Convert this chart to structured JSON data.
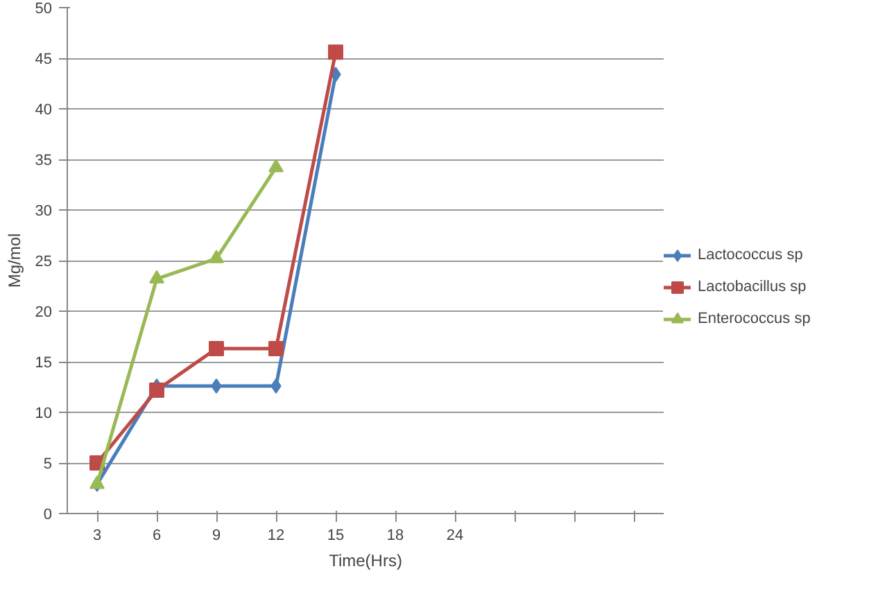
{
  "chart_data": {
    "type": "line",
    "xlabel": "Time(Hrs)",
    "ylabel": "Mg/mol",
    "categories": [
      "3",
      "6",
      "9",
      "12",
      "15",
      "18",
      "24",
      null,
      null,
      null
    ],
    "ylim": [
      0,
      50
    ],
    "yticks": [
      0,
      5,
      10,
      15,
      20,
      25,
      30,
      35,
      40,
      45,
      50
    ],
    "grid": "y",
    "legend": "right",
    "series": [
      {
        "name": "Lactococcus sp",
        "color": "#4a7ebb",
        "marker": "diamond",
        "values": [
          2.9,
          12.6,
          12.6,
          12.6,
          43.4,
          null,
          null,
          null,
          null,
          null
        ]
      },
      {
        "name": "Lactobacillus sp",
        "color": "#be4b48",
        "marker": "square",
        "values": [
          5.0,
          12.2,
          16.3,
          16.3,
          45.6,
          null,
          null,
          null,
          null,
          null
        ]
      },
      {
        "name": "Enterococcus sp",
        "color": "#98b954",
        "marker": "triangle",
        "values": [
          2.9,
          23.2,
          25.2,
          34.2,
          null,
          null,
          null,
          null,
          null,
          null
        ]
      }
    ]
  }
}
